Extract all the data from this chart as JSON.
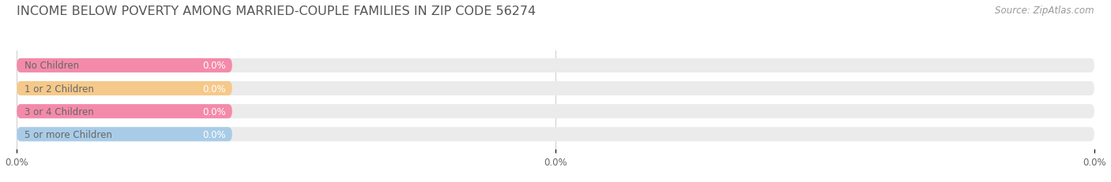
{
  "title": "INCOME BELOW POVERTY AMONG MARRIED-COUPLE FAMILIES IN ZIP CODE 56274",
  "source": "Source: ZipAtlas.com",
  "categories": [
    "No Children",
    "1 or 2 Children",
    "3 or 4 Children",
    "5 or more Children"
  ],
  "values": [
    0.0,
    0.0,
    0.0,
    0.0
  ],
  "bar_colors": [
    "#f48aaa",
    "#f5c98a",
    "#f48aaa",
    "#a8cce8"
  ],
  "bar_bg_color": "#ebebeb",
  "title_color": "#555555",
  "label_color": "#666666",
  "value_color": "#ffffff",
  "source_color": "#999999",
  "xlim": [
    0,
    100
  ],
  "title_fontsize": 11.5,
  "label_fontsize": 8.5,
  "value_fontsize": 8.5,
  "source_fontsize": 8.5,
  "tick_fontsize": 8.5,
  "figsize": [
    14.06,
    2.32
  ],
  "dpi": 100
}
